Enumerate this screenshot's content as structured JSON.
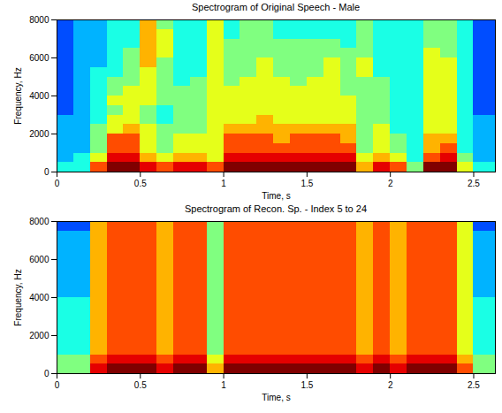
{
  "chart_data": [
    {
      "type": "heatmap",
      "title": "Spectrogram of Original Speech - Male",
      "xlabel": "Time, s",
      "ylabel": "Frequency, Hz",
      "xlim": [
        0,
        2.63
      ],
      "ylim": [
        0,
        8000
      ],
      "xticks": [
        0,
        0.5,
        1,
        1.5,
        2,
        2.5
      ],
      "yticks": [
        0,
        2000,
        4000,
        6000,
        8000
      ],
      "x_edges": [
        0,
        0.1,
        0.2,
        0.3,
        0.4,
        0.5,
        0.6,
        0.7,
        0.8,
        0.9,
        1,
        1.1,
        1.2,
        1.3,
        1.4,
        1.5,
        1.6,
        1.7,
        1.8,
        1.9,
        2,
        2.1,
        2.2,
        2.3,
        2.4,
        2.5,
        2.63
      ],
      "y_edges": [
        0,
        500,
        1000,
        1500,
        2000,
        2500,
        3000,
        3500,
        4000,
        4500,
        5000,
        5500,
        6000,
        6500,
        7000,
        7500,
        8000
      ],
      "zlim": [
        0,
        10
      ],
      "cells": [
        [
          4,
          3,
          3,
          3,
          3,
          3,
          2,
          2,
          2,
          2,
          2,
          2,
          2,
          2,
          2,
          2
        ],
        [
          4,
          4,
          3,
          3,
          3,
          3,
          3,
          3,
          3,
          3,
          3,
          3,
          3,
          3,
          3,
          3
        ],
        [
          8,
          6,
          5,
          5,
          5,
          4,
          4,
          4,
          4,
          4,
          4,
          3,
          3,
          3,
          3,
          3
        ],
        [
          10,
          9,
          8,
          8,
          6,
          6,
          5,
          6,
          5,
          5,
          4,
          4,
          4,
          4,
          4,
          4
        ],
        [
          10,
          9,
          8,
          8,
          7,
          6,
          6,
          6,
          6,
          5,
          5,
          5,
          5,
          4,
          4,
          4
        ],
        [
          9,
          7,
          6,
          6,
          6,
          5,
          5,
          6,
          6,
          6,
          6,
          7,
          7,
          7,
          7,
          7
        ],
        [
          8,
          6,
          5,
          5,
          5,
          4,
          4,
          5,
          5,
          5,
          5,
          5,
          6,
          6,
          6,
          5
        ],
        [
          9,
          7,
          6,
          6,
          5,
          5,
          5,
          5,
          5,
          4,
          4,
          4,
          4,
          4,
          4,
          4
        ],
        [
          9,
          7,
          6,
          6,
          5,
          5,
          5,
          5,
          5,
          5,
          4,
          4,
          4,
          4,
          4,
          4
        ],
        [
          8,
          6,
          6,
          6,
          6,
          6,
          6,
          6,
          6,
          6,
          6,
          6,
          6,
          6,
          6,
          6
        ],
        [
          10,
          9,
          8,
          8,
          7,
          6,
          6,
          6,
          6,
          5,
          5,
          5,
          5,
          5,
          4,
          4
        ],
        [
          10,
          9,
          8,
          8,
          7,
          6,
          6,
          6,
          6,
          6,
          5,
          5,
          5,
          5,
          5,
          5
        ],
        [
          10,
          9,
          8,
          8,
          7,
          7,
          6,
          6,
          6,
          6,
          6,
          6,
          5,
          5,
          5,
          5
        ],
        [
          10,
          9,
          8,
          7,
          7,
          6,
          6,
          6,
          6,
          6,
          5,
          5,
          5,
          5,
          4,
          4
        ],
        [
          10,
          9,
          8,
          8,
          7,
          6,
          6,
          6,
          6,
          5,
          5,
          5,
          5,
          5,
          4,
          4
        ],
        [
          10,
          9,
          8,
          8,
          7,
          6,
          6,
          6,
          6,
          6,
          5,
          5,
          5,
          5,
          4,
          4
        ],
        [
          10,
          9,
          8,
          8,
          7,
          6,
          6,
          6,
          6,
          6,
          6,
          6,
          5,
          5,
          4,
          4
        ],
        [
          10,
          9,
          8,
          7,
          7,
          6,
          6,
          6,
          5,
          5,
          5,
          5,
          5,
          4,
          4,
          4
        ],
        [
          7,
          6,
          5,
          5,
          5,
          5,
          5,
          5,
          5,
          5,
          6,
          6,
          5,
          5,
          5,
          5
        ],
        [
          9,
          7,
          6,
          6,
          6,
          5,
          5,
          5,
          5,
          5,
          4,
          4,
          4,
          4,
          4,
          4
        ],
        [
          8,
          6,
          5,
          5,
          4,
          4,
          4,
          4,
          4,
          4,
          4,
          4,
          4,
          4,
          4,
          4
        ],
        [
          5,
          4,
          4,
          4,
          4,
          4,
          4,
          4,
          4,
          4,
          4,
          4,
          4,
          4,
          4,
          4
        ],
        [
          10,
          8,
          7,
          7,
          6,
          6,
          6,
          6,
          6,
          6,
          6,
          6,
          6,
          5,
          5,
          5
        ],
        [
          10,
          9,
          8,
          7,
          6,
          6,
          6,
          6,
          6,
          6,
          6,
          6,
          5,
          5,
          5,
          5
        ],
        [
          6,
          5,
          4,
          4,
          4,
          4,
          4,
          4,
          4,
          4,
          4,
          4,
          4,
          4,
          4,
          4
        ],
        [
          4,
          3,
          3,
          3,
          3,
          3,
          2,
          2,
          2,
          2,
          2,
          2,
          2,
          2,
          2,
          2
        ]
      ]
    },
    {
      "type": "heatmap",
      "title": "Spectrogram of Recon. Sp. - Index 5 to 24",
      "xlabel": "Time, s",
      "ylabel": "Frequency, Hz",
      "xlim": [
        0,
        2.63
      ],
      "ylim": [
        0,
        8000
      ],
      "xticks": [
        0,
        0.5,
        1,
        1.5,
        2,
        2.5
      ],
      "yticks": [
        0,
        2000,
        4000,
        6000,
        8000
      ],
      "x_edges": [
        0,
        0.1,
        0.2,
        0.3,
        0.4,
        0.5,
        0.6,
        0.7,
        0.8,
        0.9,
        1,
        1.1,
        1.2,
        1.3,
        1.4,
        1.5,
        1.6,
        1.7,
        1.8,
        1.9,
        2,
        2.1,
        2.2,
        2.3,
        2.4,
        2.5,
        2.63
      ],
      "y_edges": [
        0,
        500,
        1000,
        1500,
        2000,
        2500,
        3000,
        3500,
        4000,
        4500,
        5000,
        5500,
        6000,
        6500,
        7000,
        7500,
        8000
      ],
      "zlim": [
        0,
        10
      ],
      "cells": [
        [
          5,
          5,
          4,
          4,
          4,
          4,
          4,
          4,
          3,
          3,
          3,
          3,
          3,
          3,
          3,
          2
        ],
        [
          5,
          5,
          4,
          4,
          4,
          4,
          4,
          4,
          3,
          3,
          3,
          3,
          3,
          3,
          3,
          2
        ],
        [
          9,
          8,
          7,
          7,
          7,
          7,
          7,
          7,
          7,
          7,
          7,
          7,
          7,
          7,
          7,
          7
        ],
        [
          10,
          9,
          8,
          8,
          8,
          8,
          8,
          8,
          8,
          8,
          8,
          8,
          8,
          8,
          8,
          8
        ],
        [
          10,
          9,
          8,
          8,
          8,
          8,
          8,
          8,
          8,
          8,
          8,
          8,
          8,
          8,
          8,
          8
        ],
        [
          10,
          9,
          8,
          8,
          8,
          8,
          8,
          8,
          8,
          8,
          8,
          8,
          8,
          8,
          8,
          8
        ],
        [
          9,
          8,
          7,
          7,
          7,
          7,
          7,
          7,
          7,
          7,
          7,
          7,
          7,
          7,
          7,
          7
        ],
        [
          10,
          9,
          8,
          8,
          8,
          8,
          8,
          8,
          8,
          8,
          8,
          8,
          8,
          8,
          8,
          8
        ],
        [
          10,
          9,
          8,
          8,
          8,
          8,
          8,
          8,
          8,
          8,
          8,
          8,
          8,
          8,
          8,
          8
        ],
        [
          7,
          6,
          5,
          5,
          5,
          5,
          5,
          5,
          5,
          5,
          5,
          5,
          5,
          5,
          5,
          5
        ],
        [
          10,
          9,
          8,
          8,
          8,
          8,
          8,
          8,
          8,
          8,
          8,
          8,
          8,
          8,
          8,
          8
        ],
        [
          10,
          9,
          8,
          8,
          8,
          8,
          8,
          8,
          8,
          8,
          8,
          8,
          8,
          8,
          8,
          8
        ],
        [
          10,
          9,
          8,
          8,
          8,
          8,
          8,
          8,
          8,
          8,
          8,
          8,
          8,
          8,
          8,
          8
        ],
        [
          10,
          9,
          8,
          8,
          8,
          8,
          8,
          8,
          8,
          8,
          8,
          8,
          8,
          8,
          8,
          8
        ],
        [
          10,
          9,
          8,
          8,
          8,
          8,
          8,
          8,
          8,
          8,
          8,
          8,
          8,
          8,
          8,
          8
        ],
        [
          10,
          9,
          8,
          8,
          8,
          8,
          8,
          8,
          8,
          8,
          8,
          8,
          8,
          8,
          8,
          8
        ],
        [
          10,
          9,
          8,
          8,
          8,
          8,
          8,
          8,
          8,
          8,
          8,
          8,
          8,
          8,
          8,
          8
        ],
        [
          10,
          9,
          8,
          8,
          8,
          8,
          8,
          8,
          8,
          8,
          8,
          8,
          8,
          8,
          8,
          8
        ],
        [
          9,
          8,
          7,
          7,
          7,
          7,
          7,
          7,
          7,
          7,
          7,
          7,
          7,
          7,
          7,
          7
        ],
        [
          10,
          9,
          8,
          8,
          8,
          8,
          8,
          8,
          8,
          8,
          8,
          8,
          8,
          8,
          8,
          8
        ],
        [
          9,
          8,
          7,
          7,
          7,
          7,
          7,
          7,
          7,
          7,
          7,
          7,
          7,
          7,
          7,
          7
        ],
        [
          10,
          9,
          8,
          8,
          8,
          8,
          8,
          8,
          8,
          8,
          8,
          8,
          8,
          8,
          8,
          8
        ],
        [
          10,
          9,
          8,
          8,
          8,
          8,
          8,
          8,
          8,
          8,
          8,
          8,
          8,
          8,
          8,
          8
        ],
        [
          10,
          9,
          8,
          8,
          8,
          8,
          8,
          8,
          8,
          8,
          8,
          8,
          8,
          8,
          8,
          8
        ],
        [
          8,
          7,
          6,
          6,
          6,
          6,
          6,
          6,
          6,
          6,
          6,
          6,
          6,
          6,
          6,
          6
        ],
        [
          5,
          5,
          4,
          4,
          4,
          4,
          4,
          4,
          3,
          3,
          3,
          3,
          3,
          3,
          3,
          2
        ]
      ]
    }
  ]
}
